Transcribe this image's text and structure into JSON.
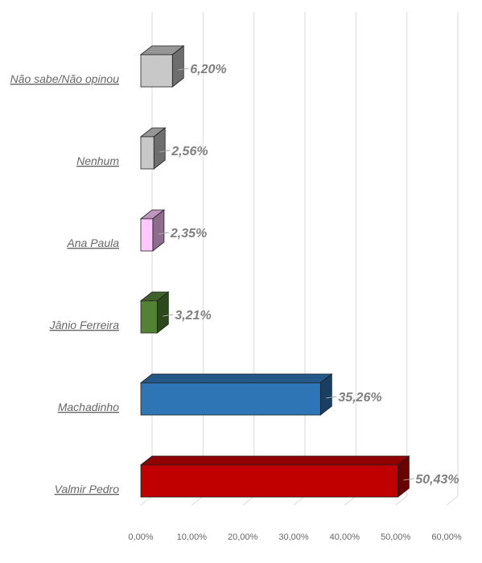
{
  "chart_data": {
    "type": "bar",
    "orientation": "horizontal",
    "three_d": true,
    "title": "",
    "xlabel": "",
    "ylabel": "",
    "categories": [
      "Não sabe/Não opinou",
      "Nenhum",
      "Ana Paula",
      "Jânio Ferreira",
      "Machadinho",
      "Valmir Pedro"
    ],
    "values": [
      6.2,
      2.56,
      2.35,
      3.21,
      35.26,
      50.43
    ],
    "value_labels": [
      "6,20%",
      "2,56%",
      "2,35%",
      "3,21%",
      "35,26%",
      "50,43%"
    ],
    "colors": [
      "#c8c8c8",
      "#c8c8c8",
      "#ffc8ff",
      "#548235",
      "#2e75b6",
      "#c00000"
    ],
    "xlim": [
      0,
      60
    ],
    "x_ticks": [
      0,
      10,
      20,
      30,
      40,
      50,
      60
    ],
    "x_tick_labels": [
      "0,00%",
      "10,00%",
      "20,00%",
      "30,00%",
      "40,00%",
      "50,00%",
      "60,00%"
    ],
    "grid": true,
    "legend": "none"
  }
}
